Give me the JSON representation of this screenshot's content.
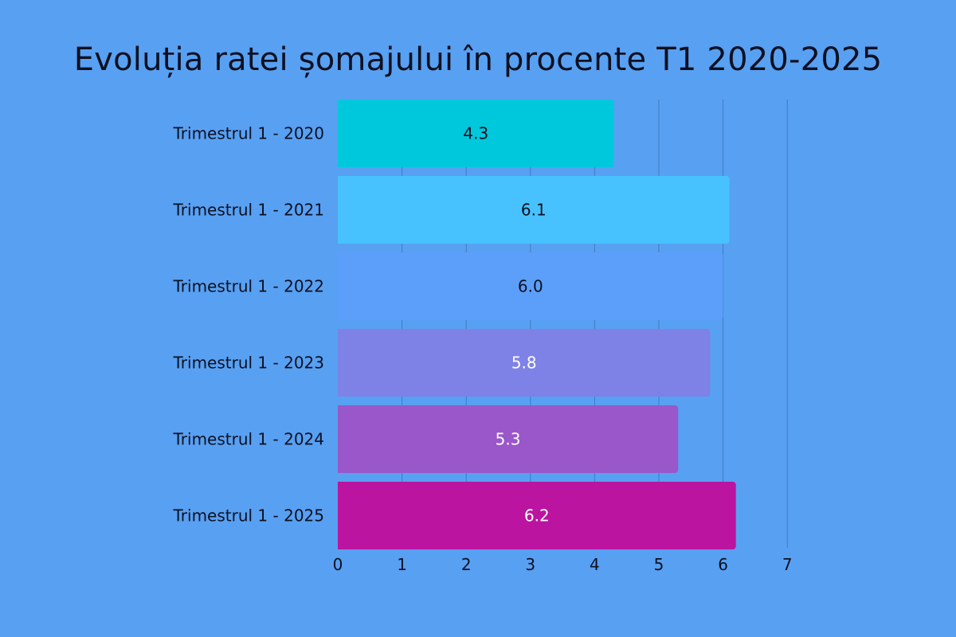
{
  "chart_data": {
    "type": "bar",
    "orientation": "horizontal",
    "title": "Evoluția ratei șomajului în procente T1 2020-2025",
    "xlabel": "",
    "ylabel": "",
    "categories": [
      "Trimestrul 1 - 2020",
      "Trimestrul 1 - 2021",
      "Trimestrul 1 - 2022",
      "Trimestrul 1 - 2023",
      "Trimestrul 1 - 2024",
      "Trimestrul 1 - 2025"
    ],
    "values": [
      4.3,
      6.1,
      6.0,
      5.8,
      5.3,
      6.2
    ],
    "value_labels": [
      "4.3",
      "6.1",
      "6.0",
      "5.8",
      "5.3",
      "6.2"
    ],
    "xlim": [
      0,
      7
    ],
    "xticks": [
      "0",
      "1",
      "2",
      "3",
      "4",
      "5",
      "6",
      "7"
    ],
    "grid": "vertical",
    "legend": "none",
    "colors": {
      "background": "#58a0f2",
      "gridline": "#3f7bc6",
      "bars": [
        "#00c8dc",
        "#48c2fe",
        "#5b9ffa",
        "#7e82e7",
        "#9a57c9",
        "#bb14a0"
      ],
      "value_text": [
        "#0d1020",
        "#0d1020",
        "#0d1020",
        "#ffffff",
        "#ffffff",
        "#ffffff"
      ]
    }
  }
}
